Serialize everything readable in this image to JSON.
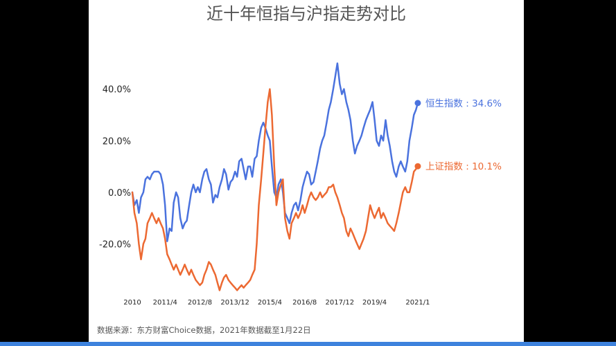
{
  "colors": {
    "hsi": "#4a72de",
    "shanghai": "#ec6932",
    "background": "#ffffff",
    "frame": "#000000",
    "bottom_bar": "#3d82dd",
    "title": "#555555",
    "tick": "#222222"
  },
  "chart_data": {
    "type": "line",
    "title": "近十年恒指与沪指走势对比",
    "source": "数据来源：东方财富Choice数据，2021年数据截至1月22日",
    "xlim": [
      2010.0,
      2021.06
    ],
    "ylim": [
      -40,
      52
    ],
    "y_ticks": [
      {
        "value": 40,
        "label": "40.0%"
      },
      {
        "value": 20,
        "label": "20.0%"
      },
      {
        "value": 0,
        "label": "0.0%"
      },
      {
        "value": -20,
        "label": "-20.0%"
      }
    ],
    "x_ticks": [
      {
        "value": 2010.0,
        "label": "2010"
      },
      {
        "value": 2011.25,
        "label": "2011/4"
      },
      {
        "value": 2012.58,
        "label": "2012/8"
      },
      {
        "value": 2013.92,
        "label": "2013/12"
      },
      {
        "value": 2015.25,
        "label": "2015/4"
      },
      {
        "value": 2016.58,
        "label": "2016/8"
      },
      {
        "value": 2017.92,
        "label": "2017/12"
      },
      {
        "value": 2019.25,
        "label": "2019/4"
      },
      {
        "value": 2020.9,
        "label": "2021/1"
      }
    ],
    "grid": false,
    "legend": "end-labels",
    "series": [
      {
        "name": "恒生指数",
        "end_label": "恒生指数 : 34.6%",
        "color_key": "hsi",
        "points": [
          [
            2010.0,
            0
          ],
          [
            2010.08,
            -5
          ],
          [
            2010.17,
            -3
          ],
          [
            2010.25,
            -8
          ],
          [
            2010.33,
            -2
          ],
          [
            2010.42,
            0
          ],
          [
            2010.5,
            5
          ],
          [
            2010.58,
            6
          ],
          [
            2010.67,
            5
          ],
          [
            2010.75,
            7
          ],
          [
            2010.83,
            8
          ],
          [
            2010.92,
            8
          ],
          [
            2011.0,
            8
          ],
          [
            2011.08,
            7
          ],
          [
            2011.17,
            3
          ],
          [
            2011.25,
            -5
          ],
          [
            2011.33,
            -19
          ],
          [
            2011.42,
            -14
          ],
          [
            2011.5,
            -15
          ],
          [
            2011.58,
            -4
          ],
          [
            2011.67,
            0
          ],
          [
            2011.75,
            -2
          ],
          [
            2011.83,
            -10
          ],
          [
            2011.92,
            -14
          ],
          [
            2012.0,
            -12
          ],
          [
            2012.08,
            -11
          ],
          [
            2012.17,
            -5
          ],
          [
            2012.25,
            0
          ],
          [
            2012.33,
            3
          ],
          [
            2012.42,
            0
          ],
          [
            2012.5,
            2
          ],
          [
            2012.58,
            0
          ],
          [
            2012.67,
            5
          ],
          [
            2012.75,
            8
          ],
          [
            2012.83,
            9
          ],
          [
            2012.92,
            5
          ],
          [
            2013.0,
            3
          ],
          [
            2013.08,
            -4
          ],
          [
            2013.17,
            -1
          ],
          [
            2013.25,
            -2
          ],
          [
            2013.33,
            2
          ],
          [
            2013.42,
            5
          ],
          [
            2013.5,
            9
          ],
          [
            2013.58,
            7
          ],
          [
            2013.67,
            1
          ],
          [
            2013.75,
            4
          ],
          [
            2013.83,
            5
          ],
          [
            2013.92,
            8
          ],
          [
            2014.0,
            6
          ],
          [
            2014.08,
            12
          ],
          [
            2014.17,
            13
          ],
          [
            2014.25,
            9
          ],
          [
            2014.33,
            5
          ],
          [
            2014.42,
            10
          ],
          [
            2014.5,
            10
          ],
          [
            2014.58,
            6
          ],
          [
            2014.67,
            13
          ],
          [
            2014.75,
            14
          ],
          [
            2014.83,
            20
          ],
          [
            2014.92,
            25
          ],
          [
            2015.0,
            27
          ],
          [
            2015.08,
            25
          ],
          [
            2015.17,
            22
          ],
          [
            2015.25,
            20
          ],
          [
            2015.33,
            10
          ],
          [
            2015.42,
            0
          ],
          [
            2015.5,
            -2
          ],
          [
            2015.58,
            3
          ],
          [
            2015.67,
            5
          ],
          [
            2015.75,
            0
          ],
          [
            2015.83,
            -8
          ],
          [
            2015.92,
            -10
          ],
          [
            2016.0,
            -12
          ],
          [
            2016.08,
            -8
          ],
          [
            2016.17,
            -5
          ],
          [
            2016.25,
            -4
          ],
          [
            2016.33,
            -7
          ],
          [
            2016.42,
            -3
          ],
          [
            2016.5,
            2
          ],
          [
            2016.58,
            5
          ],
          [
            2016.67,
            8
          ],
          [
            2016.75,
            7
          ],
          [
            2016.83,
            3
          ],
          [
            2016.92,
            4
          ],
          [
            2017.0,
            8
          ],
          [
            2017.08,
            12
          ],
          [
            2017.17,
            17
          ],
          [
            2017.25,
            20
          ],
          [
            2017.33,
            22
          ],
          [
            2017.42,
            27
          ],
          [
            2017.5,
            32
          ],
          [
            2017.58,
            35
          ],
          [
            2017.67,
            40
          ],
          [
            2017.75,
            45
          ],
          [
            2017.83,
            50
          ],
          [
            2017.92,
            42
          ],
          [
            2018.0,
            38
          ],
          [
            2018.08,
            40
          ],
          [
            2018.17,
            35
          ],
          [
            2018.25,
            32
          ],
          [
            2018.33,
            28
          ],
          [
            2018.42,
            20
          ],
          [
            2018.5,
            15
          ],
          [
            2018.58,
            18
          ],
          [
            2018.67,
            20
          ],
          [
            2018.75,
            22
          ],
          [
            2018.83,
            25
          ],
          [
            2018.92,
            28
          ],
          [
            2019.0,
            30
          ],
          [
            2019.08,
            32
          ],
          [
            2019.17,
            35
          ],
          [
            2019.25,
            28
          ],
          [
            2019.33,
            20
          ],
          [
            2019.42,
            18
          ],
          [
            2019.5,
            22
          ],
          [
            2019.58,
            20
          ],
          [
            2019.67,
            28
          ],
          [
            2019.75,
            22
          ],
          [
            2019.83,
            18
          ],
          [
            2019.92,
            12
          ],
          [
            2020.0,
            8
          ],
          [
            2020.08,
            6
          ],
          [
            2020.17,
            10
          ],
          [
            2020.25,
            12
          ],
          [
            2020.33,
            10
          ],
          [
            2020.42,
            8
          ],
          [
            2020.5,
            12
          ],
          [
            2020.58,
            20
          ],
          [
            2020.67,
            25
          ],
          [
            2020.75,
            30
          ],
          [
            2020.83,
            32
          ],
          [
            2020.9,
            34.6
          ]
        ]
      },
      {
        "name": "上证指数",
        "end_label": "上证指数 : 10.1%",
        "color_key": "shanghai",
        "points": [
          [
            2010.0,
            0
          ],
          [
            2010.08,
            -8
          ],
          [
            2010.17,
            -12
          ],
          [
            2010.25,
            -20
          ],
          [
            2010.33,
            -26
          ],
          [
            2010.42,
            -20
          ],
          [
            2010.5,
            -18
          ],
          [
            2010.58,
            -12
          ],
          [
            2010.67,
            -10
          ],
          [
            2010.75,
            -8
          ],
          [
            2010.83,
            -10
          ],
          [
            2010.92,
            -12
          ],
          [
            2011.0,
            -10
          ],
          [
            2011.08,
            -12
          ],
          [
            2011.17,
            -14
          ],
          [
            2011.25,
            -18
          ],
          [
            2011.33,
            -24
          ],
          [
            2011.42,
            -26
          ],
          [
            2011.5,
            -28
          ],
          [
            2011.58,
            -30
          ],
          [
            2011.67,
            -28
          ],
          [
            2011.75,
            -30
          ],
          [
            2011.83,
            -32
          ],
          [
            2011.92,
            -30
          ],
          [
            2012.0,
            -28
          ],
          [
            2012.08,
            -30
          ],
          [
            2012.17,
            -32
          ],
          [
            2012.25,
            -30
          ],
          [
            2012.33,
            -32
          ],
          [
            2012.42,
            -34
          ],
          [
            2012.5,
            -35
          ],
          [
            2012.58,
            -36
          ],
          [
            2012.67,
            -35
          ],
          [
            2012.75,
            -32
          ],
          [
            2012.83,
            -30
          ],
          [
            2012.92,
            -27
          ],
          [
            2013.0,
            -28
          ],
          [
            2013.08,
            -30
          ],
          [
            2013.17,
            -32
          ],
          [
            2013.25,
            -35
          ],
          [
            2013.33,
            -38
          ],
          [
            2013.42,
            -35
          ],
          [
            2013.5,
            -33
          ],
          [
            2013.58,
            -32
          ],
          [
            2013.67,
            -34
          ],
          [
            2013.75,
            -35
          ],
          [
            2013.83,
            -36
          ],
          [
            2013.92,
            -37
          ],
          [
            2014.0,
            -38
          ],
          [
            2014.08,
            -37
          ],
          [
            2014.17,
            -36
          ],
          [
            2014.25,
            -37
          ],
          [
            2014.33,
            -36
          ],
          [
            2014.42,
            -35
          ],
          [
            2014.5,
            -34
          ],
          [
            2014.58,
            -32
          ],
          [
            2014.67,
            -30
          ],
          [
            2014.75,
            -20
          ],
          [
            2014.83,
            -5
          ],
          [
            2014.92,
            5
          ],
          [
            2015.0,
            15
          ],
          [
            2015.08,
            25
          ],
          [
            2015.17,
            35
          ],
          [
            2015.25,
            40
          ],
          [
            2015.33,
            30
          ],
          [
            2015.42,
            10
          ],
          [
            2015.5,
            -5
          ],
          [
            2015.58,
            0
          ],
          [
            2015.67,
            3
          ],
          [
            2015.75,
            5
          ],
          [
            2015.83,
            -10
          ],
          [
            2015.92,
            -15
          ],
          [
            2016.0,
            -18
          ],
          [
            2016.08,
            -12
          ],
          [
            2016.17,
            -10
          ],
          [
            2016.25,
            -8
          ],
          [
            2016.33,
            -10
          ],
          [
            2016.42,
            -8
          ],
          [
            2016.5,
            -5
          ],
          [
            2016.58,
            -8
          ],
          [
            2016.67,
            -5
          ],
          [
            2016.75,
            -2
          ],
          [
            2016.83,
            0
          ],
          [
            2016.92,
            -2
          ],
          [
            2017.0,
            -3
          ],
          [
            2017.08,
            -2
          ],
          [
            2017.17,
            0
          ],
          [
            2017.25,
            -2
          ],
          [
            2017.33,
            -1
          ],
          [
            2017.42,
            0
          ],
          [
            2017.5,
            2
          ],
          [
            2017.58,
            2
          ],
          [
            2017.67,
            3
          ],
          [
            2017.75,
            0
          ],
          [
            2017.83,
            -2
          ],
          [
            2017.92,
            -5
          ],
          [
            2018.0,
            -8
          ],
          [
            2018.08,
            -10
          ],
          [
            2018.17,
            -15
          ],
          [
            2018.25,
            -17
          ],
          [
            2018.33,
            -14
          ],
          [
            2018.42,
            -16
          ],
          [
            2018.5,
            -18
          ],
          [
            2018.58,
            -20
          ],
          [
            2018.67,
            -22
          ],
          [
            2018.75,
            -20
          ],
          [
            2018.83,
            -18
          ],
          [
            2018.92,
            -15
          ],
          [
            2019.0,
            -10
          ],
          [
            2019.08,
            -5
          ],
          [
            2019.17,
            -8
          ],
          [
            2019.25,
            -10
          ],
          [
            2019.33,
            -8
          ],
          [
            2019.42,
            -6
          ],
          [
            2019.5,
            -10
          ],
          [
            2019.58,
            -8
          ],
          [
            2019.67,
            -10
          ],
          [
            2019.75,
            -12
          ],
          [
            2019.83,
            -13
          ],
          [
            2019.92,
            -14
          ],
          [
            2020.0,
            -15
          ],
          [
            2020.08,
            -12
          ],
          [
            2020.17,
            -8
          ],
          [
            2020.25,
            -4
          ],
          [
            2020.33,
            0
          ],
          [
            2020.42,
            2
          ],
          [
            2020.5,
            0
          ],
          [
            2020.58,
            0
          ],
          [
            2020.67,
            4
          ],
          [
            2020.75,
            8
          ],
          [
            2020.83,
            9
          ],
          [
            2020.9,
            10.1
          ]
        ]
      }
    ]
  }
}
